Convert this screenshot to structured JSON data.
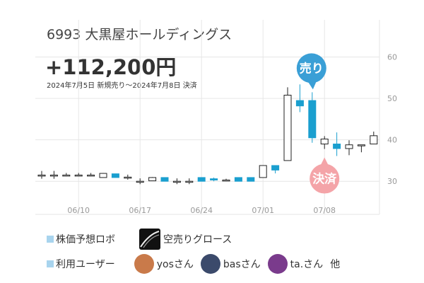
{
  "header": {
    "stock_title": "6993 大黒屋ホールディングス",
    "profit": "+112,200円",
    "period": "2024年7月5日 新規売り～2024年7月8日 決済"
  },
  "markers": {
    "sell_label": "売り",
    "settle_label": "決済",
    "sell_color": "#3a9fd6",
    "settle_color": "#f4a4a8"
  },
  "legend": {
    "predictor_label": "株価予想ロボ",
    "robot_name": "空売りグロース",
    "users_label": "利用ユーザー",
    "users": [
      {
        "name": "yosさん",
        "icon": "person-avatar-icon",
        "color": "#c97a4a"
      },
      {
        "name": "basさん",
        "icon": "bee-avatar-icon",
        "color": "#3b4a6b"
      },
      {
        "name": "ta.さん",
        "icon": "character-avatar-icon",
        "color": "#7a3b8c"
      }
    ],
    "others": "他"
  },
  "colors": {
    "up": "#ffffff",
    "down": "#1a9fcf",
    "outline": "#222222",
    "grid": "#e6e6e6"
  },
  "chart_data": {
    "type": "candlestick",
    "ylim": [
      22,
      69
    ],
    "yticks": [
      30,
      40,
      50,
      60
    ],
    "xticks": [
      "06/10",
      "06/17",
      "06/24",
      "07/01",
      "07/08"
    ],
    "candles": [
      {
        "date": "06/05",
        "o": 31.5,
        "h": 32.5,
        "l": 30.6,
        "c": 31.5
      },
      {
        "date": "06/06",
        "o": 31.5,
        "h": 32.5,
        "l": 30.6,
        "c": 31.5
      },
      {
        "date": "06/07",
        "o": 31.5,
        "h": 32.0,
        "l": 31.2,
        "c": 31.5
      },
      {
        "date": "06/10",
        "o": 31.5,
        "h": 32.0,
        "l": 31.2,
        "c": 31.5
      },
      {
        "date": "06/11",
        "o": 31.5,
        "h": 32.0,
        "l": 31.2,
        "c": 31.5
      },
      {
        "date": "06/12",
        "o": 30.9,
        "h": 32.0,
        "l": 30.9,
        "c": 31.9
      },
      {
        "date": "06/13",
        "o": 31.8,
        "h": 31.8,
        "l": 30.9,
        "c": 30.9
      },
      {
        "date": "06/14",
        "o": 31.0,
        "h": 31.6,
        "l": 30.4,
        "c": 31.0
      },
      {
        "date": "06/17",
        "o": 30.0,
        "h": 30.7,
        "l": 29.3,
        "c": 30.0
      },
      {
        "date": "06/18",
        "o": 30.1,
        "h": 31.0,
        "l": 30.1,
        "c": 30.9
      },
      {
        "date": "06/19",
        "o": 30.9,
        "h": 30.9,
        "l": 30.0,
        "c": 30.0
      },
      {
        "date": "06/20",
        "o": 30.0,
        "h": 30.7,
        "l": 29.3,
        "c": 30.0
      },
      {
        "date": "06/21",
        "o": 30.0,
        "h": 30.7,
        "l": 29.3,
        "c": 30.0
      },
      {
        "date": "06/24",
        "o": 30.9,
        "h": 30.9,
        "l": 30.0,
        "c": 30.0
      },
      {
        "date": "06/25",
        "o": 30.6,
        "h": 30.9,
        "l": 30.0,
        "c": 30.3
      },
      {
        "date": "06/26",
        "o": 30.3,
        "h": 30.6,
        "l": 30.0,
        "c": 30.3
      },
      {
        "date": "06/27",
        "o": 30.9,
        "h": 30.9,
        "l": 30.0,
        "c": 30.0
      },
      {
        "date": "06/28",
        "o": 30.9,
        "h": 30.9,
        "l": 30.0,
        "c": 30.0
      },
      {
        "date": "07/01",
        "o": 30.9,
        "h": 33.8,
        "l": 30.9,
        "c": 33.8
      },
      {
        "date": "07/02",
        "o": 33.8,
        "h": 33.8,
        "l": 31.9,
        "c": 32.7
      },
      {
        "date": "07/03",
        "o": 35.0,
        "h": 52.7,
        "l": 35.0,
        "c": 50.8
      },
      {
        "date": "07/04",
        "o": 49.5,
        "h": 53.4,
        "l": 46.7,
        "c": 48.2
      },
      {
        "date": "07/05",
        "o": 49.5,
        "h": 51.5,
        "l": 39.3,
        "c": 40.5
      },
      {
        "date": "07/08",
        "o": 39.0,
        "h": 40.9,
        "l": 37.8,
        "c": 40.2
      },
      {
        "date": "07/09",
        "o": 39.0,
        "h": 41.8,
        "l": 36.1,
        "c": 37.9
      },
      {
        "date": "07/10",
        "o": 37.9,
        "h": 39.9,
        "l": 36.3,
        "c": 38.8
      },
      {
        "date": "07/11",
        "o": 38.8,
        "h": 38.8,
        "l": 37.0,
        "c": 38.8
      },
      {
        "date": "07/12",
        "o": 39.0,
        "h": 42.0,
        "l": 39.0,
        "c": 41.0
      }
    ],
    "sell_date": "07/05",
    "settle_date": "07/08"
  }
}
